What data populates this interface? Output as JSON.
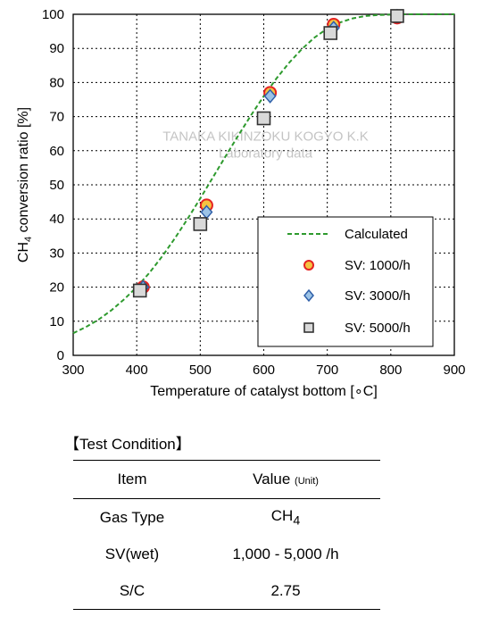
{
  "chart_data": {
    "type": "scatter",
    "xlabel": "Temperature of catalyst bottom [∘C]",
    "ylabel": "CH4 conversion ratio [%]",
    "ylabel_parts": [
      "CH",
      "4",
      " conversion ratio [%]"
    ],
    "xlim": [
      300,
      900
    ],
    "ylim": [
      0,
      100
    ],
    "x_ticks": [
      300,
      400,
      500,
      600,
      700,
      800,
      900
    ],
    "y_ticks": [
      0,
      10,
      20,
      30,
      40,
      50,
      60,
      70,
      80,
      90,
      100
    ],
    "grid": "dotted",
    "legend_position": "lower-right",
    "watermark": [
      "TANAKA KIKINZOKU KOGYO K.K",
      "Laboratory data"
    ],
    "series": [
      {
        "name": "Calculated",
        "kind": "line",
        "style": "dashed",
        "color": "#2e9a2e",
        "x": [
          300,
          320,
          340,
          360,
          380,
          400,
          420,
          440,
          460,
          480,
          500,
          520,
          540,
          560,
          580,
          600,
          620,
          640,
          660,
          680,
          700,
          720,
          740,
          760,
          780,
          800,
          820,
          840,
          860,
          880,
          900
        ],
        "values": [
          6.5,
          8.3,
          10.5,
          13.2,
          16.4,
          20.0,
          24.2,
          29.0,
          34.3,
          40.0,
          46.0,
          52.2,
          58.4,
          64.5,
          70.4,
          76.0,
          81.2,
          85.8,
          89.8,
          93.2,
          95.8,
          97.6,
          98.8,
          99.5,
          99.8,
          99.9,
          100,
          100,
          100,
          100,
          100
        ]
      },
      {
        "name": "SV: 1000/h",
        "kind": "marker",
        "marker": "circle",
        "color": "#f5c242",
        "stroke": "#e52222",
        "x": [
          410,
          510,
          610,
          710,
          810
        ],
        "values": [
          20,
          44,
          77,
          97,
          99
        ]
      },
      {
        "name": "SV: 3000/h",
        "kind": "marker",
        "marker": "diamond",
        "color": "#9cc3e6",
        "stroke": "#2f5fa8",
        "x": [
          410,
          510,
          610,
          710,
          810
        ],
        "values": [
          20,
          42,
          76,
          96,
          99.5
        ]
      },
      {
        "name": "SV: 5000/h",
        "kind": "marker",
        "marker": "square",
        "color": "#d9d9d9",
        "stroke": "#333333",
        "x": [
          405,
          500,
          600,
          705,
          810
        ],
        "values": [
          19,
          38.5,
          69.5,
          94.5,
          99.5
        ]
      }
    ]
  },
  "test_condition": {
    "title": "【Test Condition】",
    "header_item": "Item",
    "header_value": "Value ",
    "header_unit": "(Unit)",
    "rows": [
      {
        "item": "Gas Type",
        "value_main": "CH",
        "value_sub": "4"
      },
      {
        "item": "SV(wet)",
        "value_main": "1,000 - 5,000 /h",
        "value_sub": ""
      },
      {
        "item": "S/C",
        "value_main": "2.75",
        "value_sub": ""
      }
    ]
  }
}
